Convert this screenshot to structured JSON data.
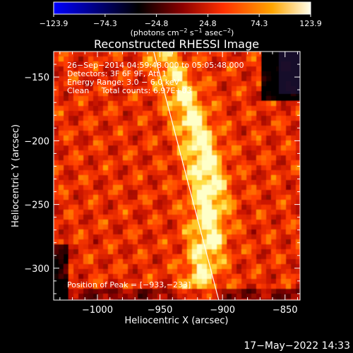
{
  "chart_data": {
    "type": "heatmap",
    "title": "Reconstructed RHESSI Image",
    "xlabel": "Heliocentric X (arcsec)",
    "ylabel": "Heliocentric Y (arcsec)",
    "xlim": [
      -1035,
      -838
    ],
    "ylim": [
      -325,
      -130
    ],
    "xticks": [
      {
        "value": -1000,
        "label": "−1000"
      },
      {
        "value": -950,
        "label": "−950"
      },
      {
        "value": -900,
        "label": "−900"
      },
      {
        "value": -850,
        "label": "−850"
      }
    ],
    "yticks": [
      {
        "value": -150,
        "label": "−150"
      },
      {
        "value": -200,
        "label": "−200"
      },
      {
        "value": -250,
        "label": "−250"
      },
      {
        "value": -300,
        "label": "−300"
      }
    ],
    "colorbar": {
      "range": [
        -123.9,
        123.9
      ],
      "ticks": [
        {
          "value": -123.9,
          "label": "−123.9"
        },
        {
          "value": -74.3,
          "label": "−74.3"
        },
        {
          "value": -24.8,
          "label": "−24.8"
        },
        {
          "value": 24.8,
          "label": "24.8"
        },
        {
          "value": 74.3,
          "label": "74.3"
        },
        {
          "value": 123.9,
          "label": "123.9"
        }
      ],
      "unit_label_parts": [
        "(photons cm",
        "−2",
        " s",
        "−1",
        " asec",
        "−2",
        ")"
      ]
    },
    "info_lines": [
      "26−Sep−2014 04:59:48.000 to 05:05:48.000",
      "Detectors: 3F 6F 9F, Att 1",
      "Energy Range: 3.0 − 6.0 keV",
      "Clean     Total counts: 6.97E+03"
    ],
    "peak_text": "Position of Peak = [−933,−233]",
    "peak": [
      -933,
      -233
    ],
    "limb_line": [
      [
        -955,
        -130
      ],
      [
        -903,
        -325
      ]
    ]
  },
  "colors": {
    "background": "#000000",
    "text": "#ffffff",
    "limb": "#ffffff",
    "colormap": [
      "#0000ff",
      "#000000",
      "#8b0000",
      "#ff3000",
      "#ffa500",
      "#ffff90",
      "#ffffff"
    ]
  },
  "footer": {
    "timestamp": "17−May−2022 14:33"
  }
}
